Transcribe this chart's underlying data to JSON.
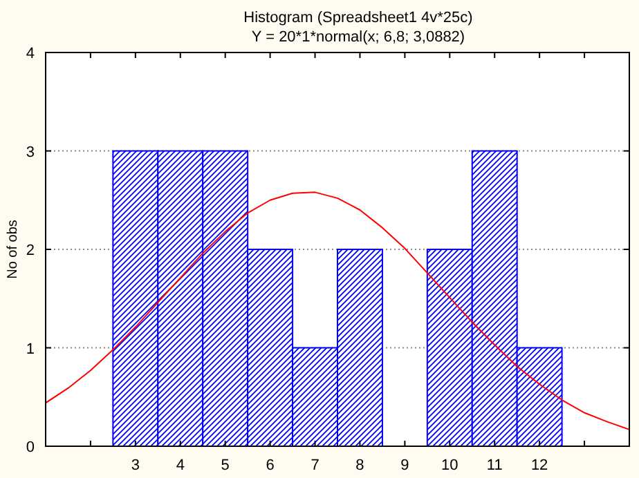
{
  "chart_data": {
    "type": "histogram",
    "title": "Histogram (Spreadsheet1 4v*25c)",
    "subtitle": "Y = 20*1*normal(x; 6,8; 3,0882)",
    "ylabel": "No of obs",
    "xlim": [
      1,
      14
    ],
    "xticks": [
      {
        "value": 2,
        "label": null
      },
      3,
      4,
      5,
      6,
      7,
      8,
      9,
      10,
      11,
      12,
      {
        "value": 13,
        "label": null
      }
    ],
    "ylim": [
      0,
      4
    ],
    "yticks": [
      0,
      1,
      2,
      3,
      4
    ],
    "grid": "y",
    "series": [
      {
        "color": "#0000ff",
        "bins": [
          2.5,
          3.5,
          4.5,
          5.5,
          6.5,
          7.5,
          8.5,
          9.5,
          10.5,
          11.5,
          12.5
        ],
        "values": [
          3,
          3,
          3,
          2,
          1,
          2,
          0,
          2,
          3,
          1
        ]
      },
      {
        "type": "line",
        "color": "#ff0000",
        "x": [
          1,
          1.5,
          2,
          2.5,
          3,
          3.5,
          4,
          4.5,
          5,
          5.5,
          6,
          6.5,
          7,
          7.5,
          8,
          8.5,
          9,
          9.5,
          10,
          10.5,
          11,
          11.5,
          12,
          12.5,
          13,
          13.5,
          14
        ],
        "values": [
          0.44,
          0.59,
          0.77,
          0.98,
          1.21,
          1.46,
          1.71,
          1.96,
          2.18,
          2.37,
          2.5,
          2.57,
          2.58,
          2.52,
          2.4,
          2.22,
          2.01,
          1.76,
          1.51,
          1.26,
          1.03,
          0.81,
          0.63,
          0.47,
          0.34,
          0.25,
          0.17
        ]
      }
    ]
  }
}
